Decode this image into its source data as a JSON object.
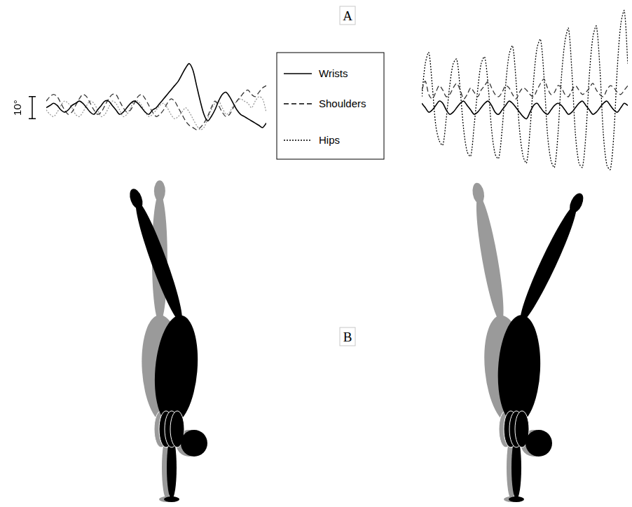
{
  "panel_labels": [
    "A",
    "B"
  ],
  "scale_bar": {
    "value": 10,
    "label": "10°"
  },
  "chart_data": [
    {
      "type": "line",
      "x": [
        0,
        1,
        2,
        3,
        4,
        5,
        6,
        7,
        8,
        9,
        10,
        11,
        12,
        13,
        14,
        15,
        16,
        17,
        18,
        19,
        20,
        21,
        22,
        23,
        24,
        25,
        26,
        27,
        28,
        29,
        30,
        31,
        32,
        33,
        34,
        35,
        36,
        37,
        38,
        39,
        40,
        41,
        42,
        43,
        44,
        45,
        46,
        47,
        48,
        49,
        50,
        51,
        52,
        53,
        54,
        55,
        56,
        57,
        58,
        59,
        60
      ],
      "xlim": [
        0,
        60
      ],
      "ylim": [
        -30,
        45
      ],
      "tick_labels": false,
      "grid": false,
      "legend": "right",
      "series": [
        {
          "name": "Wrists",
          "color": "#000000",
          "line_style": "solid",
          "marker": "none",
          "values": [
            0,
            1,
            2,
            1,
            -1,
            -2,
            -1,
            1,
            2,
            3,
            2,
            0,
            -2,
            -3,
            -1,
            1,
            3,
            3,
            1,
            -1,
            -3,
            -2,
            0,
            2,
            3,
            2,
            0,
            -2,
            -3,
            -1,
            0,
            2,
            4,
            6,
            8,
            10,
            12,
            15,
            18,
            20,
            17,
            10,
            3,
            -3,
            -6,
            -4,
            -1,
            3,
            6,
            7,
            5,
            2,
            -1,
            -3,
            -4,
            -5,
            -6,
            -7,
            -8,
            -9,
            -7
          ]
        },
        {
          "name": "Shoulders",
          "color": "#333333",
          "line_style": "dashed",
          "marker": "none",
          "values": [
            3,
            5,
            6,
            5,
            2,
            -1,
            -3,
            -2,
            1,
            4,
            6,
            5,
            2,
            -1,
            -3,
            -2,
            1,
            4,
            6,
            6,
            3,
            0,
            -2,
            -1,
            2,
            5,
            6,
            4,
            1,
            -2,
            -4,
            -3,
            -1,
            2,
            4,
            3,
            0,
            -3,
            -6,
            -8,
            -9,
            -10,
            -9,
            -7,
            -4,
            0,
            3,
            1,
            -2,
            -4,
            -3,
            0,
            3,
            5,
            7,
            8,
            6,
            5,
            7,
            9,
            10
          ]
        },
        {
          "name": "Hips",
          "color": "#999999",
          "line_style": "dotted",
          "marker": "none",
          "values": [
            -1,
            -3,
            -4,
            -2,
            1,
            3,
            2,
            0,
            -3,
            -4,
            -2,
            1,
            3,
            2,
            -1,
            -4,
            -3,
            0,
            3,
            2,
            -1,
            -4,
            -3,
            0,
            3,
            3,
            1,
            -2,
            -4,
            -3,
            -1,
            1,
            2,
            0,
            -3,
            -5,
            -4,
            -2,
            0,
            -2,
            -5,
            -8,
            -10,
            -9,
            -5,
            -1,
            2,
            3,
            0,
            -3,
            -2,
            1,
            3,
            4,
            3,
            2,
            0,
            3,
            5,
            4,
            -2
          ]
        }
      ]
    },
    {
      "type": "line",
      "x": [
        0,
        1,
        2,
        3,
        4,
        5,
        6,
        7,
        8,
        9,
        10,
        11,
        12,
        13,
        14,
        15,
        16,
        17,
        18,
        19,
        20,
        21,
        22,
        23,
        24,
        25,
        26,
        27,
        28,
        29,
        30,
        31,
        32,
        33,
        34,
        35,
        36,
        37,
        38,
        39,
        40,
        41,
        42,
        43,
        44,
        45,
        46,
        47,
        48,
        49,
        50,
        51,
        52,
        53,
        54,
        55,
        56,
        57,
        58,
        59
      ],
      "xlim": [
        0,
        59
      ],
      "ylim": [
        -30,
        45
      ],
      "tick_labels": false,
      "grid": false,
      "series": [
        {
          "name": "Wrists",
          "color": "#000000",
          "line_style": "solid",
          "marker": "none",
          "values": [
            2,
            0,
            -2,
            -1,
            1,
            3,
            2,
            -1,
            -3,
            -2,
            0,
            2,
            3,
            1,
            -1,
            -3,
            -2,
            0,
            2,
            3,
            1,
            -2,
            -3,
            -1,
            1,
            3,
            2,
            0,
            -2,
            -4,
            -5,
            -2,
            1,
            2,
            0,
            -2,
            -3,
            -1,
            1,
            2,
            1,
            -1,
            -3,
            -2,
            0,
            2,
            3,
            1,
            -1,
            -3,
            -2,
            0,
            2,
            3,
            1,
            -1,
            -2,
            0,
            2,
            1
          ]
        },
        {
          "name": "Shoulders",
          "color": "#333333",
          "line_style": "dashed",
          "marker": "none",
          "values": [
            8,
            12,
            6,
            4,
            7,
            10,
            8,
            5,
            6,
            9,
            11,
            8,
            4,
            6,
            9,
            7,
            5,
            8,
            10,
            12,
            9,
            6,
            5,
            7,
            10,
            9,
            6,
            4,
            7,
            9,
            8,
            6,
            5,
            8,
            11,
            13,
            9,
            6,
            7,
            10,
            9,
            6,
            5,
            8,
            10,
            8,
            6,
            7,
            9,
            11,
            8,
            6,
            5,
            8,
            10,
            9,
            7,
            6,
            8,
            10
          ]
        },
        {
          "name": "Hips",
          "color": "#000000",
          "line_style": "dotted",
          "marker": "none",
          "values": [
            5,
            20,
            25,
            10,
            -8,
            -15,
            -17,
            -5,
            10,
            20,
            22,
            8,
            -10,
            -20,
            -22,
            -8,
            8,
            20,
            23,
            10,
            -10,
            -21,
            -23,
            -10,
            10,
            24,
            28,
            12,
            -10,
            -22,
            -25,
            -10,
            12,
            27,
            31,
            14,
            -12,
            -24,
            -27,
            -12,
            14,
            30,
            36,
            16,
            -12,
            -25,
            -27,
            -12,
            15,
            32,
            37,
            18,
            -12,
            -26,
            -28,
            -12,
            18,
            38,
            44,
            20
          ]
        }
      ]
    }
  ]
}
